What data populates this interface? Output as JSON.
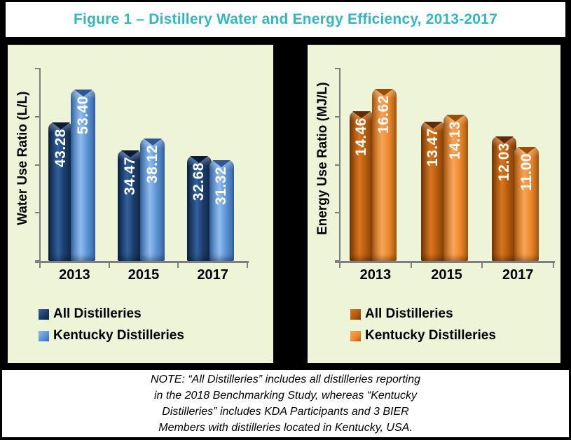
{
  "title": "Figure 1 – Distillery Water and Energy Efficiency, 2013-2017",
  "note": {
    "lines": [
      "NOTE: “All Distilleries” includes all distilleries reporting",
      "in the 2018 Benchmarking Study, whereas “Kentucky",
      "Distilleries” includes KDA Participants and 3 BIER",
      "Members with distilleries located in Kentucky, USA."
    ]
  },
  "colors": {
    "frame": "#000000",
    "band_bg": "#FFFFFF",
    "panel_bg": "#EEF4D8",
    "title_color": "#33B6C1",
    "axis_color": "#7F7F7F",
    "value_label_color": "#FFFFFF"
  },
  "chart_data": [
    {
      "type": "bar",
      "title": "",
      "xlabel": "",
      "ylabel": "Water Use Ratio (L/L)",
      "categories": [
        "2013",
        "2015",
        "2017"
      ],
      "series": [
        {
          "name": "All Distilleries",
          "values": [
            43.28,
            34.47,
            32.68
          ],
          "colors": {
            "light": "#31619F",
            "main": "#1B3C69",
            "dark": "#0D2342",
            "notch": "#0A1B33"
          }
        },
        {
          "name": "Kentucky Distilleries",
          "values": [
            53.4,
            38.12,
            31.32
          ],
          "colors": {
            "light": "#8FBCEE",
            "main": "#5E95D6",
            "dark": "#396AA9",
            "notch": "#2E5893"
          }
        }
      ],
      "ylim": [
        0,
        60
      ],
      "y_tick_count": 5,
      "y_tick_labels_shown": false,
      "grid": false,
      "legend_position": "bottom-left",
      "value_labels_decimals": 2
    },
    {
      "type": "bar",
      "title": "",
      "xlabel": "",
      "ylabel": "Energy Use Ratio (MJ/L)",
      "categories": [
        "2013",
        "2015",
        "2017"
      ],
      "series": [
        {
          "name": "All Distilleries",
          "values": [
            14.46,
            13.47,
            12.03
          ],
          "colors": {
            "light": "#D9751C",
            "main": "#B35B0F",
            "dark": "#7A3A06",
            "notch": "#5F2D04"
          }
        },
        {
          "name": "Kentucky Distilleries",
          "values": [
            16.62,
            14.13,
            11.0
          ],
          "colors": {
            "light": "#F9A558",
            "main": "#EE8B30",
            "dark": "#B05E10",
            "notch": "#9A4F07"
          }
        }
      ],
      "ylim": [
        0,
        18.6
      ],
      "y_tick_count": 5,
      "y_tick_labels_shown": false,
      "grid": false,
      "legend_position": "bottom-left",
      "value_labels_decimals": 2
    }
  ]
}
